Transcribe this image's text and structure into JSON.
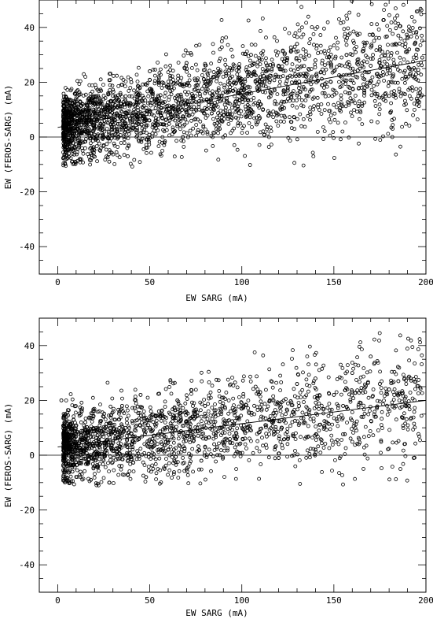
{
  "chart_data": [
    {
      "type": "scatter",
      "title": "",
      "xlabel": "EW SARG (mA)",
      "ylabel": "EW (FEROS-SARG) (mA)",
      "xlim": [
        -10,
        200
      ],
      "ylim": [
        -50,
        50
      ],
      "xticks": [
        0,
        50,
        100,
        150,
        200
      ],
      "yticks": [
        -40,
        -20,
        0,
        20,
        40
      ],
      "reference_line_y": 0,
      "fit_line": {
        "x": [
          0,
          200
        ],
        "y": [
          3.5,
          28
        ]
      },
      "grid": false,
      "legend": "none",
      "color": "#000000",
      "sample_points": [
        [
          5,
          4
        ],
        [
          10,
          8
        ],
        [
          15,
          2
        ],
        [
          20,
          12
        ],
        [
          25,
          -3
        ],
        [
          30,
          15
        ],
        [
          35,
          6
        ],
        [
          40,
          20
        ],
        [
          45,
          9
        ],
        [
          50,
          24
        ],
        [
          55,
          12
        ],
        [
          60,
          18
        ],
        [
          65,
          4
        ],
        [
          70,
          27
        ],
        [
          75,
          10
        ],
        [
          80,
          16
        ],
        [
          85,
          22
        ],
        [
          90,
          8
        ],
        [
          95,
          25
        ],
        [
          100,
          14
        ],
        [
          105,
          30
        ],
        [
          110,
          12
        ],
        [
          115,
          20
        ],
        [
          120,
          26
        ],
        [
          125,
          18
        ],
        [
          130,
          34
        ],
        [
          135,
          22
        ],
        [
          140,
          28
        ],
        [
          145,
          16
        ],
        [
          150,
          24
        ],
        [
          155,
          20
        ],
        [
          160,
          30
        ],
        [
          165,
          18
        ],
        [
          170,
          26
        ],
        [
          175,
          32
        ],
        [
          180,
          15
        ],
        [
          185,
          37
        ],
        [
          190,
          36
        ],
        [
          195,
          14
        ],
        [
          198,
          29
        ],
        [
          12,
          -8
        ],
        [
          18,
          -6
        ],
        [
          28,
          -9
        ],
        [
          38,
          -7
        ],
        [
          48,
          -4
        ],
        [
          58,
          -2
        ],
        [
          68,
          0
        ],
        [
          78,
          2
        ],
        [
          88,
          3
        ],
        [
          98,
          5
        ]
      ]
    },
    {
      "type": "scatter",
      "title": "",
      "xlabel": "EW SARG (mA)",
      "ylabel": "EW (FEROS-SARG) (mA)",
      "xlim": [
        -10,
        200
      ],
      "ylim": [
        -50,
        50
      ],
      "xticks": [
        0,
        50,
        100,
        150,
        200
      ],
      "yticks": [
        -40,
        -20,
        0,
        20,
        40
      ],
      "reference_line_y": 0,
      "fit_line": {
        "x": [
          0,
          200
        ],
        "y": [
          3,
          20
        ]
      },
      "grid": false,
      "legend": "none",
      "color": "#000000",
      "sample_points": [
        [
          2,
          20
        ],
        [
          5,
          6
        ],
        [
          10,
          3
        ],
        [
          15,
          12
        ],
        [
          20,
          -4
        ],
        [
          25,
          14
        ],
        [
          30,
          5
        ],
        [
          35,
          18
        ],
        [
          40,
          8
        ],
        [
          45,
          22
        ],
        [
          50,
          10
        ],
        [
          55,
          16
        ],
        [
          60,
          2
        ],
        [
          65,
          20
        ],
        [
          70,
          7
        ],
        [
          75,
          14
        ],
        [
          80,
          18
        ],
        [
          85,
          4
        ],
        [
          90,
          21
        ],
        [
          95,
          11
        ],
        [
          100,
          17
        ],
        [
          105,
          9
        ],
        [
          110,
          23
        ],
        [
          115,
          13
        ],
        [
          120,
          19
        ],
        [
          125,
          6
        ],
        [
          130,
          26
        ],
        [
          135,
          15
        ],
        [
          140,
          28
        ],
        [
          145,
          10
        ],
        [
          150,
          22
        ],
        [
          155,
          18
        ],
        [
          160,
          30
        ],
        [
          165,
          14
        ],
        [
          170,
          36
        ],
        [
          175,
          26
        ],
        [
          180,
          24
        ],
        [
          185,
          27
        ],
        [
          8,
          -6
        ],
        [
          18,
          -9
        ],
        [
          28,
          -10
        ],
        [
          38,
          -7
        ],
        [
          48,
          -8
        ],
        [
          58,
          -5
        ],
        [
          68,
          -3
        ],
        [
          78,
          -2
        ],
        [
          88,
          0
        ],
        [
          98,
          1
        ],
        [
          120,
          -1
        ],
        [
          140,
          2
        ]
      ]
    }
  ]
}
